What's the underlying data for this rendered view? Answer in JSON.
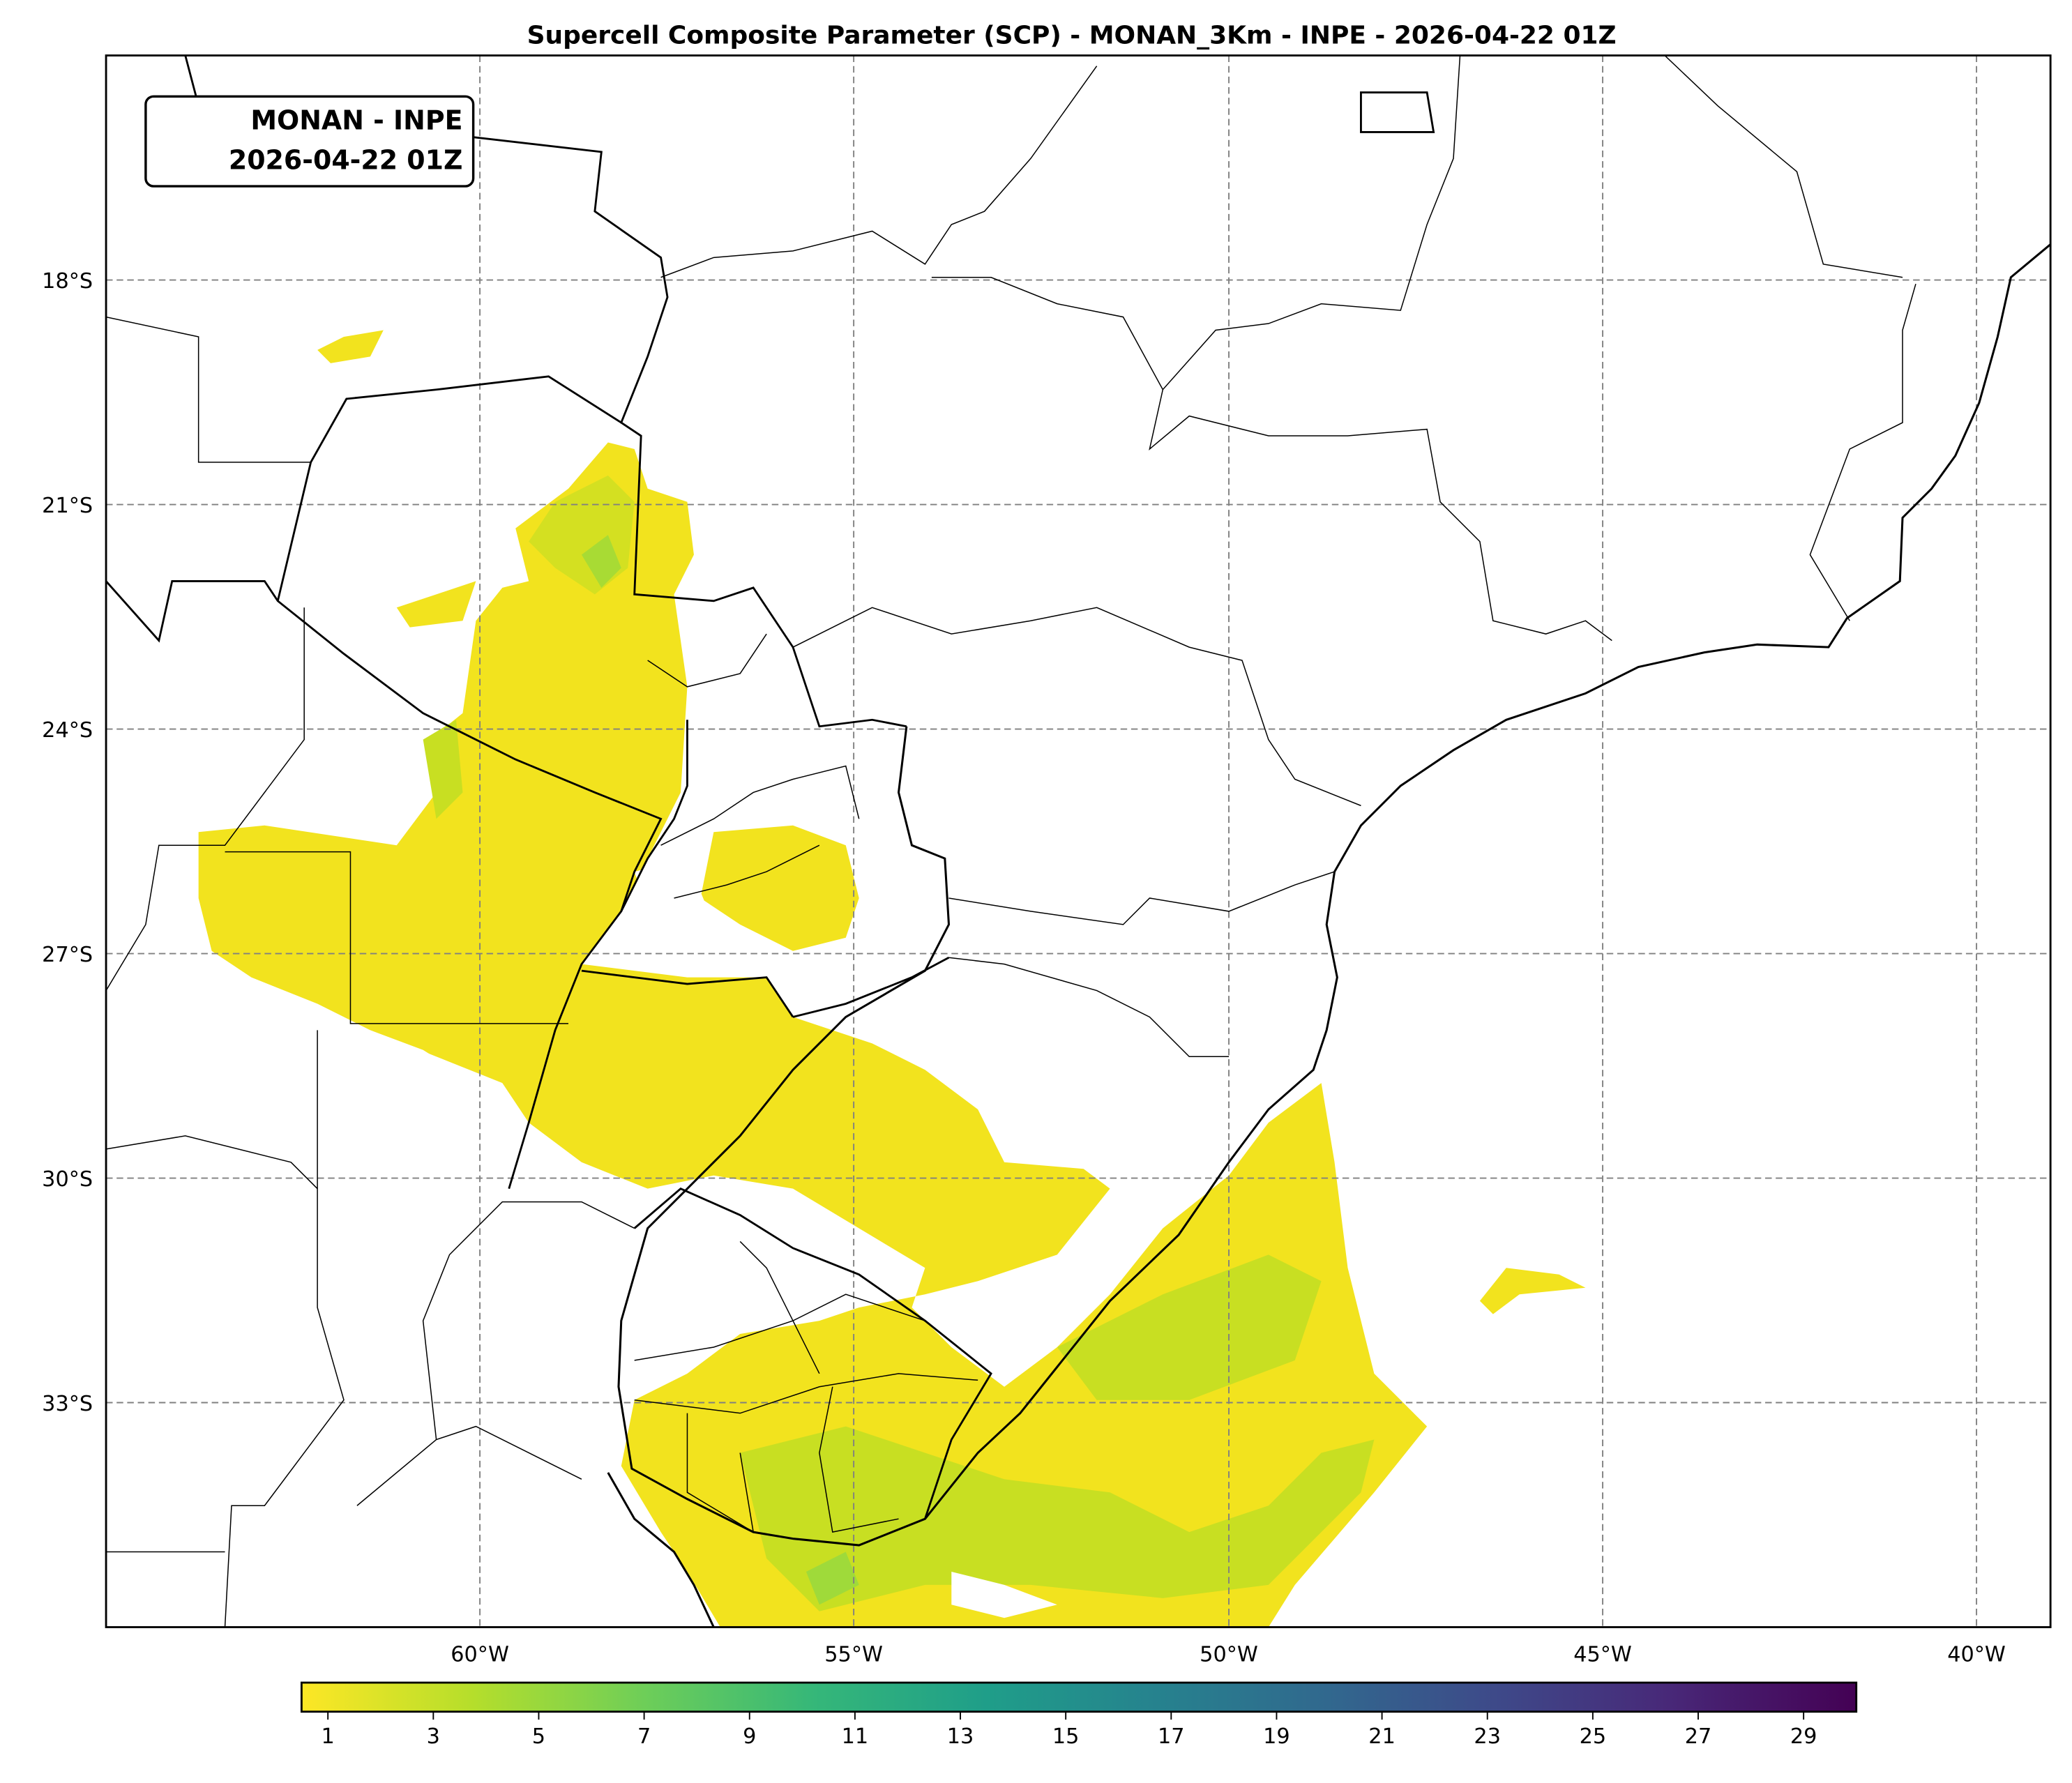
{
  "title": "Supercell Composite Parameter (SCP) - MONAN_3Km - INPE - 2026-04-22 01Z",
  "label_box": {
    "line1": "MONAN - INPE",
    "line2": "2026-04-22 01Z"
  },
  "map": {
    "projection": "PlateCarree",
    "lat_labels": [
      "18°S",
      "21°S",
      "24°S",
      "27°S",
      "30°S",
      "33°S"
    ],
    "lon_labels": [
      "60°W",
      "55°W",
      "50°W",
      "45°W",
      "40°W"
    ],
    "extent": {
      "lon_min": -65,
      "lon_max": -39,
      "lat_min": -35.5,
      "lat_max": -15
    }
  },
  "colorbar": {
    "colormap": "viridis_r",
    "range": [
      0.5,
      30
    ],
    "ticks": [
      "1",
      "3",
      "5",
      "7",
      "9",
      "11",
      "13",
      "15",
      "17",
      "19",
      "21",
      "23",
      "25",
      "27",
      "29"
    ],
    "colors": [
      "#fde725",
      "#b5de2b",
      "#6ece58",
      "#35b779",
      "#1f9e89",
      "#26828e",
      "#31688e",
      "#3e4989",
      "#482878",
      "#440154"
    ]
  }
}
